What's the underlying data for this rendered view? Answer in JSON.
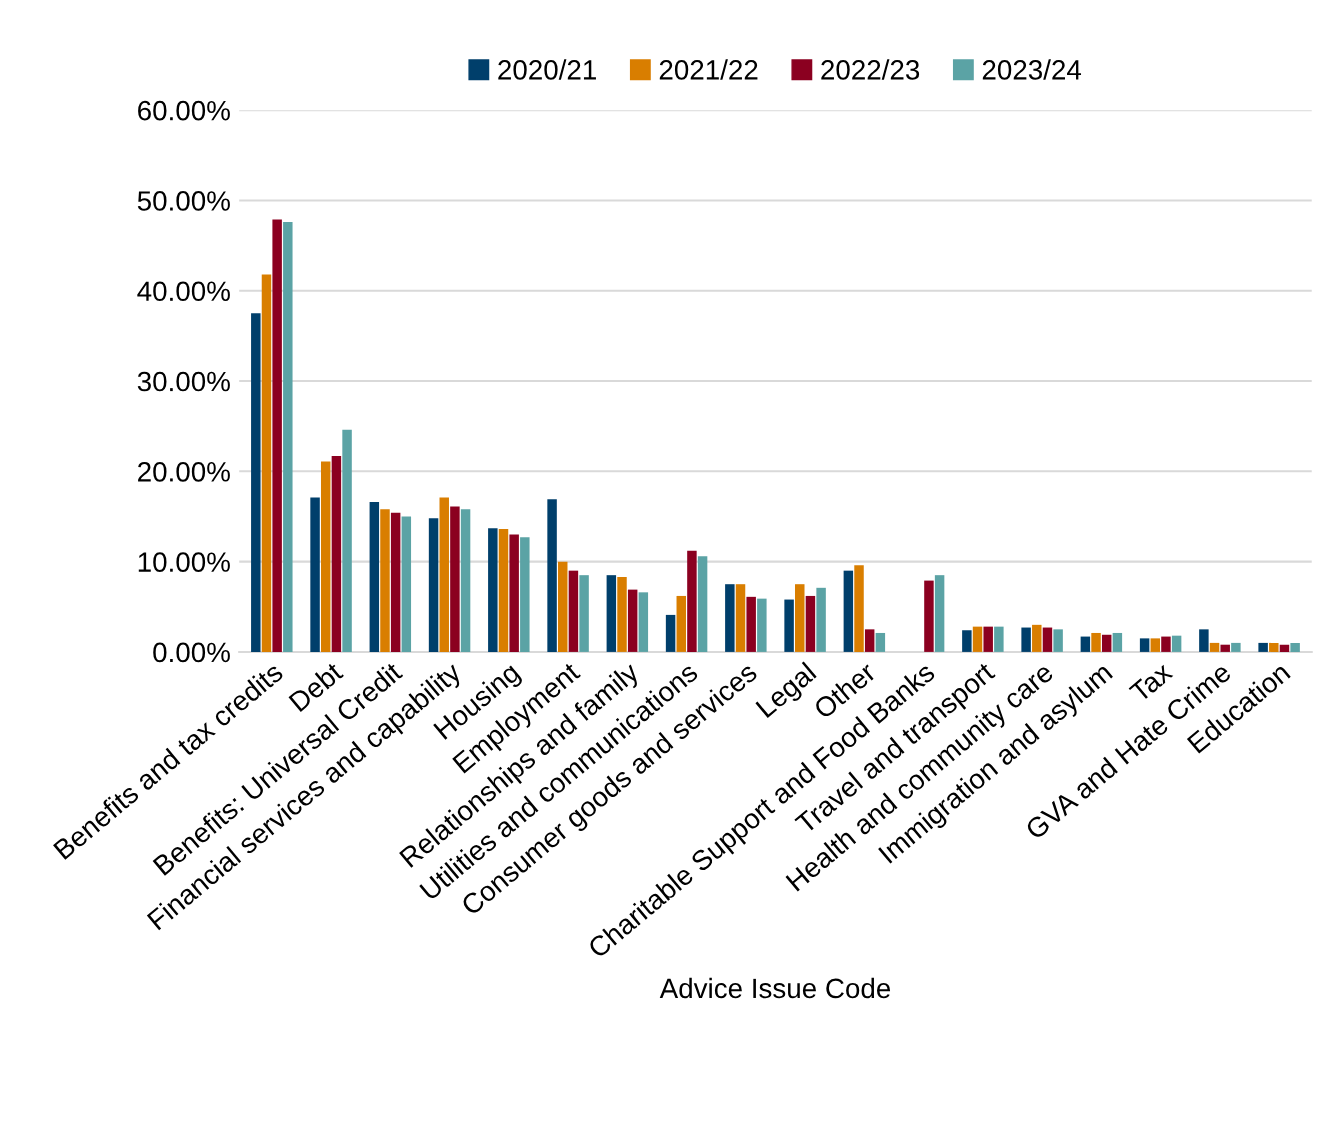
{
  "chart_data": {
    "type": "bar",
    "xlabel": "Advice Issue Code",
    "categories": [
      "Benefits and tax credits",
      "Debt",
      "Benefits: Universal Credit",
      "Financial services and capability",
      "Housing",
      "Employment",
      "Relationships and family",
      "Utilities and communications",
      "Consumer goods and services",
      "Legal",
      "Other",
      "Charitable Support and Food Banks",
      "Travel and transport",
      "Health and community care",
      "Immigration and asylum",
      "Tax",
      "GVA and Hate Crime",
      "Education"
    ],
    "series": [
      {
        "name": "2020/21",
        "color": "#003f6b",
        "values": [
          37.5,
          17.1,
          16.6,
          14.8,
          13.7,
          16.9,
          8.5,
          4.1,
          7.5,
          5.8,
          9.0,
          null,
          2.4,
          2.7,
          1.7,
          1.5,
          2.5,
          1.0
        ]
      },
      {
        "name": "2021/22",
        "color": "#d97e00",
        "values": [
          41.8,
          21.1,
          15.8,
          17.1,
          13.6,
          10.0,
          8.3,
          6.2,
          7.5,
          7.5,
          9.6,
          null,
          2.8,
          3.0,
          2.1,
          1.5,
          1.0,
          1.0
        ]
      },
      {
        "name": "2022/23",
        "color": "#8b0020",
        "values": [
          47.9,
          21.7,
          15.4,
          16.1,
          13.0,
          9.0,
          6.9,
          11.2,
          6.1,
          6.2,
          2.5,
          7.9,
          2.8,
          2.7,
          1.9,
          1.7,
          0.8,
          0.8
        ]
      },
      {
        "name": "2023/24",
        "color": "#5ba3a5",
        "values": [
          47.6,
          24.6,
          15.0,
          15.8,
          12.7,
          8.5,
          6.6,
          10.6,
          5.9,
          7.1,
          2.1,
          8.5,
          2.8,
          2.5,
          2.1,
          1.8,
          1.0,
          1.0
        ]
      }
    ],
    "ylim": [
      0,
      60
    ],
    "yticks": [
      {
        "value": 0,
        "label": "0.00%"
      },
      {
        "value": 10,
        "label": "10.00%"
      },
      {
        "value": 20,
        "label": "20.00%"
      },
      {
        "value": 30,
        "label": "30.00%"
      },
      {
        "value": 40,
        "label": "40.00%"
      },
      {
        "value": 50,
        "label": "50.00%"
      },
      {
        "value": 60,
        "label": "60.00%"
      }
    ],
    "grid": "y",
    "legend": "top"
  }
}
